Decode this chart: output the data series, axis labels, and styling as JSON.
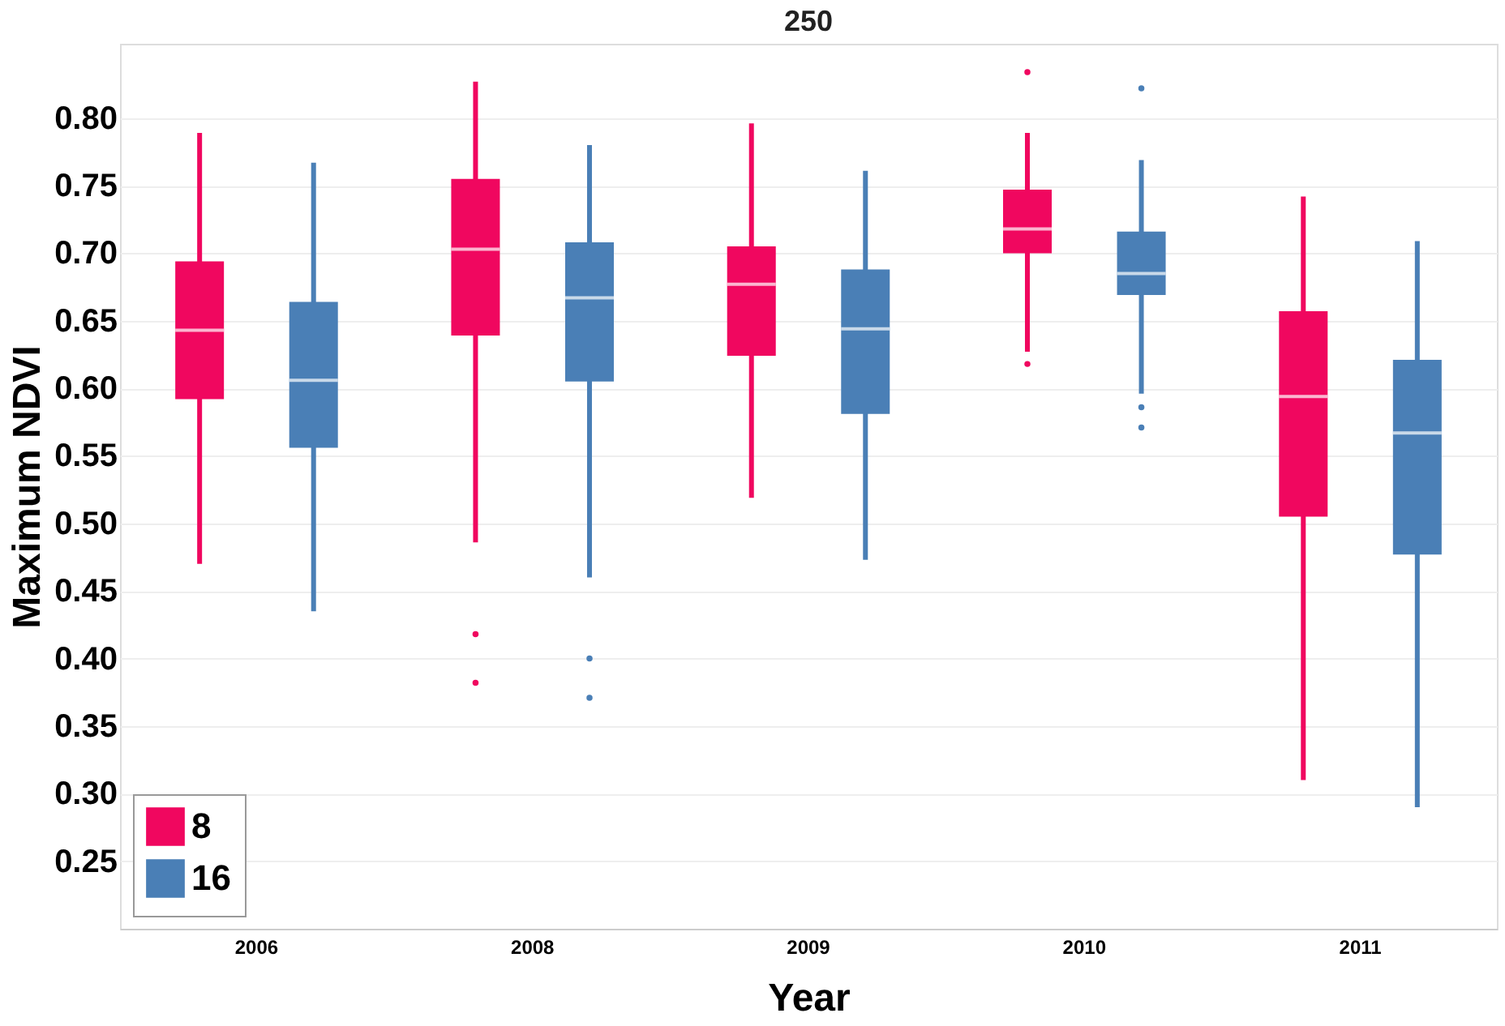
{
  "chart_data": {
    "type": "box",
    "title": "250",
    "xlabel": "Year",
    "ylabel": "Maximum NDVI",
    "categories": [
      "2006",
      "2008",
      "2009",
      "2010",
      "2011"
    ],
    "series": [
      {
        "name": "8",
        "color": "#f0075f",
        "boxes": [
          {
            "low": 0.47,
            "q1": 0.592,
            "median": 0.643,
            "q3": 0.694,
            "high": 0.789
          },
          {
            "low": 0.486,
            "q1": 0.639,
            "median": 0.703,
            "q3": 0.755,
            "high": 0.827,
            "outliers": [
              0.418,
              0.382
            ]
          },
          {
            "low": 0.519,
            "q1": 0.624,
            "median": 0.677,
            "q3": 0.705,
            "high": 0.796
          },
          {
            "low": 0.627,
            "q1": 0.7,
            "median": 0.718,
            "q3": 0.747,
            "high": 0.789,
            "outliers": [
              0.834,
              0.618
            ]
          },
          {
            "low": 0.31,
            "q1": 0.505,
            "median": 0.594,
            "q3": 0.657,
            "high": 0.742
          }
        ]
      },
      {
        "name": "16",
        "color": "#4a7fb6",
        "boxes": [
          {
            "low": 0.435,
            "q1": 0.556,
            "median": 0.606,
            "q3": 0.664,
            "high": 0.767
          },
          {
            "low": 0.46,
            "q1": 0.605,
            "median": 0.667,
            "q3": 0.708,
            "high": 0.78,
            "outliers": [
              0.4,
              0.371
            ]
          },
          {
            "low": 0.473,
            "q1": 0.581,
            "median": 0.644,
            "q3": 0.688,
            "high": 0.761
          },
          {
            "low": 0.596,
            "q1": 0.669,
            "median": 0.685,
            "q3": 0.716,
            "high": 0.769,
            "outliers": [
              0.822,
              0.586,
              0.571
            ]
          },
          {
            "low": 0.29,
            "q1": 0.477,
            "median": 0.567,
            "q3": 0.621,
            "high": 0.709
          }
        ]
      }
    ],
    "ylim": [
      0.2,
      0.855
    ],
    "yticks": [
      {
        "value": 0.25,
        "label": "0.25"
      },
      {
        "value": 0.3,
        "label": "0.30"
      },
      {
        "value": 0.35,
        "label": "0.35"
      },
      {
        "value": 0.4,
        "label": "0.40"
      },
      {
        "value": 0.45,
        "label": "0.45"
      },
      {
        "value": 0.5,
        "label": "0.50"
      },
      {
        "value": 0.55,
        "label": "0.55"
      },
      {
        "value": 0.6,
        "label": "0.60"
      },
      {
        "value": 0.65,
        "label": "0.65"
      },
      {
        "value": 0.7,
        "label": "0.70"
      },
      {
        "value": 0.75,
        "label": "0.75"
      },
      {
        "value": 0.8,
        "label": "0.80"
      }
    ],
    "grid": "y",
    "legend": "bottom left"
  }
}
